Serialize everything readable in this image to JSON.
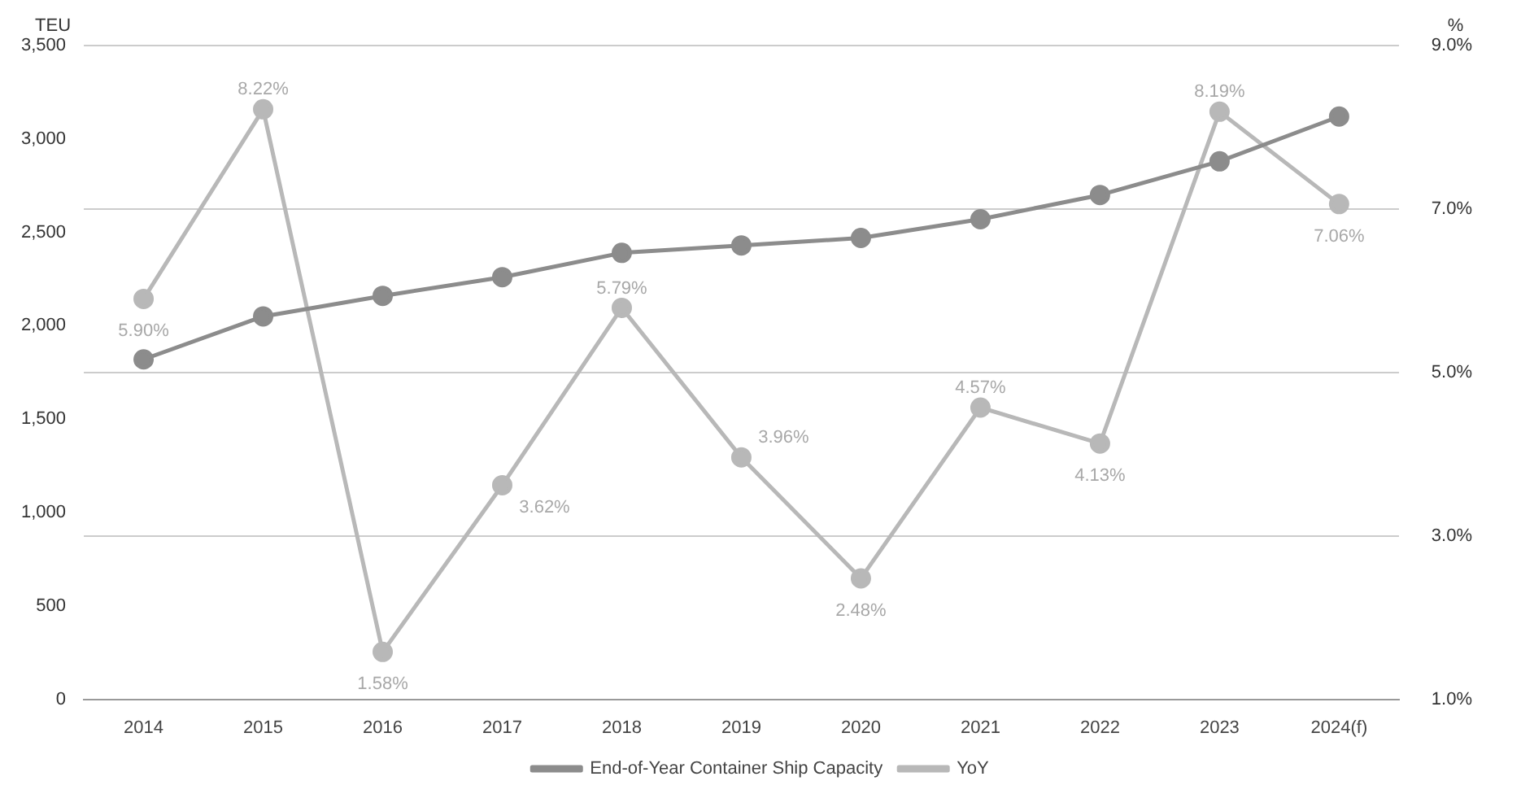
{
  "chart_data": {
    "type": "line",
    "categories": [
      "2014",
      "2015",
      "2016",
      "2017",
      "2018",
      "2019",
      "2020",
      "2021",
      "2022",
      "2023",
      "2024(f)"
    ],
    "ylabel": "TEU",
    "y2label": "%",
    "ylim": [
      0,
      3500
    ],
    "yticks": [
      0,
      500,
      {
        "value": 1000,
        "label": "1,000"
      },
      {
        "value": 1500,
        "label": "1,500"
      },
      {
        "value": 2000,
        "label": "2,000"
      },
      {
        "value": 2500,
        "label": "2,500"
      },
      {
        "value": 3000,
        "label": "3,000"
      },
      {
        "value": 3500,
        "label": "3,500"
      }
    ],
    "y2lim": [
      1,
      9
    ],
    "y2ticks": [
      {
        "value": 1,
        "label": "1.0%"
      },
      {
        "value": 3,
        "label": "3.0%"
      },
      {
        "value": 5,
        "label": "5.0%"
      },
      {
        "value": 7,
        "label": "7.0%"
      },
      {
        "value": 9,
        "label": "9.0%"
      }
    ],
    "series": [
      {
        "name": "End-of-Year Container Ship Capacity",
        "color": "#8c8c8c",
        "values": [
          1820,
          2050,
          2160,
          2260,
          2390,
          2430,
          2470,
          2570,
          2700,
          2880,
          3120
        ]
      },
      {
        "name": "YoY",
        "color": "#b8b8b8",
        "axis": "y2",
        "values": [
          5.9,
          8.22,
          1.58,
          3.62,
          5.79,
          3.96,
          2.48,
          4.57,
          4.13,
          8.19,
          7.06
        ],
        "value_labels": [
          "5.90%",
          "8.22%",
          "1.58%",
          "3.62%",
          "5.79%",
          "3.96%",
          "2.48%",
          "4.57%",
          "4.13%",
          "8.19%",
          "7.06%"
        ]
      }
    ],
    "grid": "y2",
    "legend": "bottom",
    "marker": "circle",
    "line_style": "solid"
  }
}
